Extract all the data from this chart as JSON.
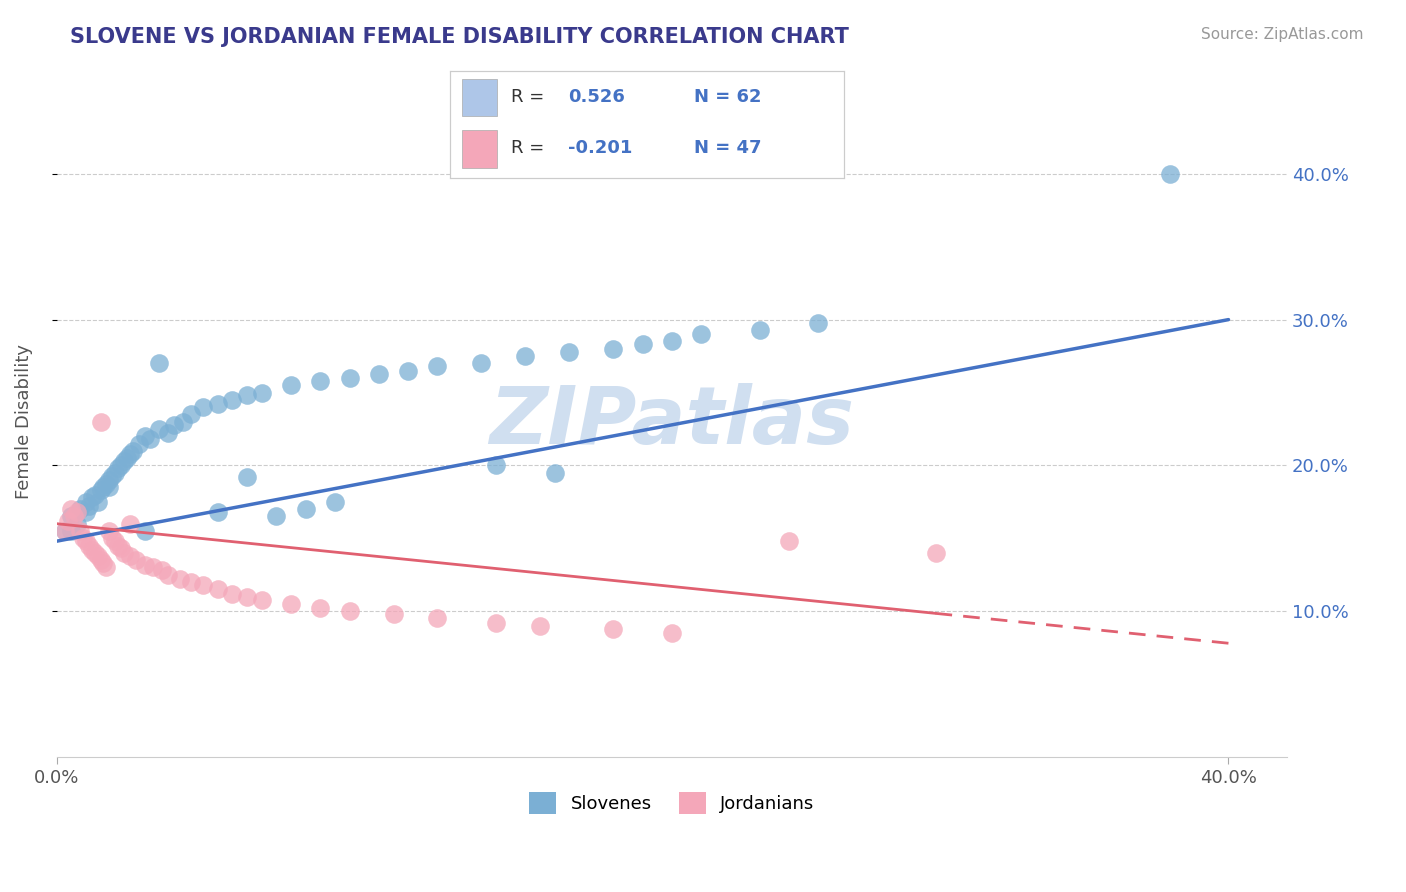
{
  "title": "SLOVENE VS JORDANIAN FEMALE DISABILITY CORRELATION CHART",
  "source_text": "Source: ZipAtlas.com",
  "ylabel": "Female Disability",
  "xlim": [
    0.0,
    0.42
  ],
  "ylim": [
    0.0,
    0.46
  ],
  "ytick_vals": [
    0.1,
    0.2,
    0.3,
    0.4
  ],
  "xtick_vals": [
    0.0,
    0.4
  ],
  "blue_R": 0.526,
  "blue_N": 62,
  "pink_R": -0.201,
  "pink_N": 47,
  "blue_color": "#7bafd4",
  "pink_color": "#f4a7b9",
  "blue_line_color": "#4472c4",
  "pink_line_color": "#e06070",
  "title_color": "#3a3a8c",
  "watermark_color": "#d0dff0",
  "legend_blue_box": "#aec6e8",
  "legend_pink_box": "#f4a7b9",
  "slovene_x": [
    0.003,
    0.005,
    0.005,
    0.007,
    0.008,
    0.01,
    0.01,
    0.011,
    0.012,
    0.013,
    0.014,
    0.015,
    0.016,
    0.017,
    0.018,
    0.018,
    0.019,
    0.02,
    0.021,
    0.022,
    0.023,
    0.024,
    0.025,
    0.026,
    0.028,
    0.03,
    0.032,
    0.035,
    0.038,
    0.04,
    0.043,
    0.046,
    0.05,
    0.055,
    0.06,
    0.065,
    0.07,
    0.08,
    0.09,
    0.1,
    0.11,
    0.12,
    0.13,
    0.145,
    0.16,
    0.175,
    0.19,
    0.2,
    0.21,
    0.22,
    0.24,
    0.26,
    0.15,
    0.17,
    0.065,
    0.055,
    0.095,
    0.075,
    0.085,
    0.03,
    0.035,
    0.38
  ],
  "slovene_y": [
    0.155,
    0.165,
    0.155,
    0.16,
    0.17,
    0.168,
    0.175,
    0.172,
    0.178,
    0.18,
    0.175,
    0.183,
    0.185,
    0.187,
    0.19,
    0.185,
    0.193,
    0.195,
    0.198,
    0.2,
    0.203,
    0.205,
    0.208,
    0.21,
    0.215,
    0.22,
    0.218,
    0.225,
    0.222,
    0.228,
    0.23,
    0.235,
    0.24,
    0.242,
    0.245,
    0.248,
    0.25,
    0.255,
    0.258,
    0.26,
    0.263,
    0.265,
    0.268,
    0.27,
    0.275,
    0.278,
    0.28,
    0.283,
    0.285,
    0.29,
    0.293,
    0.298,
    0.2,
    0.195,
    0.192,
    0.168,
    0.175,
    0.165,
    0.17,
    0.155,
    0.27,
    0.4
  ],
  "jordanian_x": [
    0.003,
    0.004,
    0.005,
    0.006,
    0.007,
    0.008,
    0.009,
    0.01,
    0.011,
    0.012,
    0.013,
    0.014,
    0.015,
    0.016,
    0.017,
    0.018,
    0.019,
    0.02,
    0.021,
    0.022,
    0.023,
    0.025,
    0.027,
    0.03,
    0.033,
    0.036,
    0.038,
    0.042,
    0.046,
    0.05,
    0.055,
    0.06,
    0.065,
    0.07,
    0.08,
    0.09,
    0.1,
    0.115,
    0.13,
    0.15,
    0.165,
    0.19,
    0.21,
    0.25,
    0.3,
    0.015,
    0.025
  ],
  "jordanian_y": [
    0.155,
    0.162,
    0.17,
    0.165,
    0.168,
    0.155,
    0.15,
    0.148,
    0.145,
    0.142,
    0.14,
    0.138,
    0.135,
    0.133,
    0.13,
    0.155,
    0.15,
    0.148,
    0.145,
    0.143,
    0.14,
    0.138,
    0.135,
    0.132,
    0.13,
    0.128,
    0.125,
    0.122,
    0.12,
    0.118,
    0.115,
    0.112,
    0.11,
    0.108,
    0.105,
    0.102,
    0.1,
    0.098,
    0.095,
    0.092,
    0.09,
    0.088,
    0.085,
    0.148,
    0.14,
    0.23,
    0.16
  ],
  "blue_trendline_x": [
    0.0,
    0.4
  ],
  "blue_trendline_y": [
    0.148,
    0.3
  ],
  "pink_trendline_x": [
    0.0,
    0.4
  ],
  "pink_trendline_y": [
    0.16,
    0.078
  ]
}
